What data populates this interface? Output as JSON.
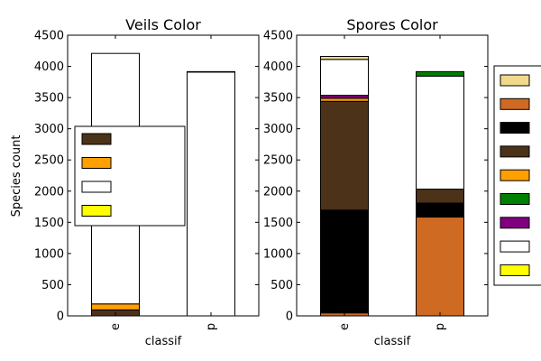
{
  "figure": {
    "ylabel": "Species count"
  },
  "chart_data": [
    {
      "type": "bar",
      "stacked": true,
      "title": "Veils Color",
      "xlabel": "classif",
      "ylabel": "Species count",
      "categories": [
        "e",
        "p"
      ],
      "ylim": [
        0,
        4500
      ],
      "yticks": [
        0,
        500,
        1000,
        1500,
        2000,
        2500,
        3000,
        3500,
        4000,
        4500
      ],
      "legend_placement": "center-left",
      "series": [
        {
          "name": "Brown",
          "color": "#4b3219",
          "values": [
            96,
            0
          ]
        },
        {
          "name": "Orange",
          "color": "#ff9f00",
          "values": [
            96,
            0
          ]
        },
        {
          "name": "White",
          "color": "#ffffff",
          "values": [
            4016,
            3908
          ]
        },
        {
          "name": "Yellow",
          "color": "#ffff00",
          "values": [
            0,
            8
          ]
        }
      ]
    },
    {
      "type": "bar",
      "stacked": true,
      "title": "Spores Color",
      "xlabel": "classif",
      "categories": [
        "e",
        "p"
      ],
      "ylim": [
        0,
        4500
      ],
      "yticks": [
        0,
        500,
        1000,
        1500,
        2000,
        2500,
        3000,
        3500,
        4000,
        4500
      ],
      "legend_placement": "outside-right",
      "series": [
        {
          "name": "",
          "color": "#cf6a22",
          "values": [
            48,
            1584
          ]
        },
        {
          "name": "",
          "color": "#000000",
          "values": [
            1648,
            224
          ]
        },
        {
          "name": "",
          "color": "#4b3219",
          "values": [
            1744,
            224
          ]
        },
        {
          "name": "",
          "color": "#ff9f00",
          "values": [
            48,
            0
          ]
        },
        {
          "name": "",
          "color": "#800080",
          "values": [
            48,
            0
          ]
        },
        {
          "name": "",
          "color": "#ffffff",
          "values": [
            576,
            1812
          ]
        },
        {
          "name": "",
          "color": "#008000",
          "values": [
            0,
            72
          ]
        },
        {
          "name": "",
          "color": "#f0d98a",
          "values": [
            48,
            0
          ]
        }
      ],
      "legend_order": [
        7,
        0,
        1,
        2,
        3,
        6,
        4,
        5,
        8
      ],
      "legend_extra_colors": [
        "#ffff00"
      ]
    }
  ]
}
